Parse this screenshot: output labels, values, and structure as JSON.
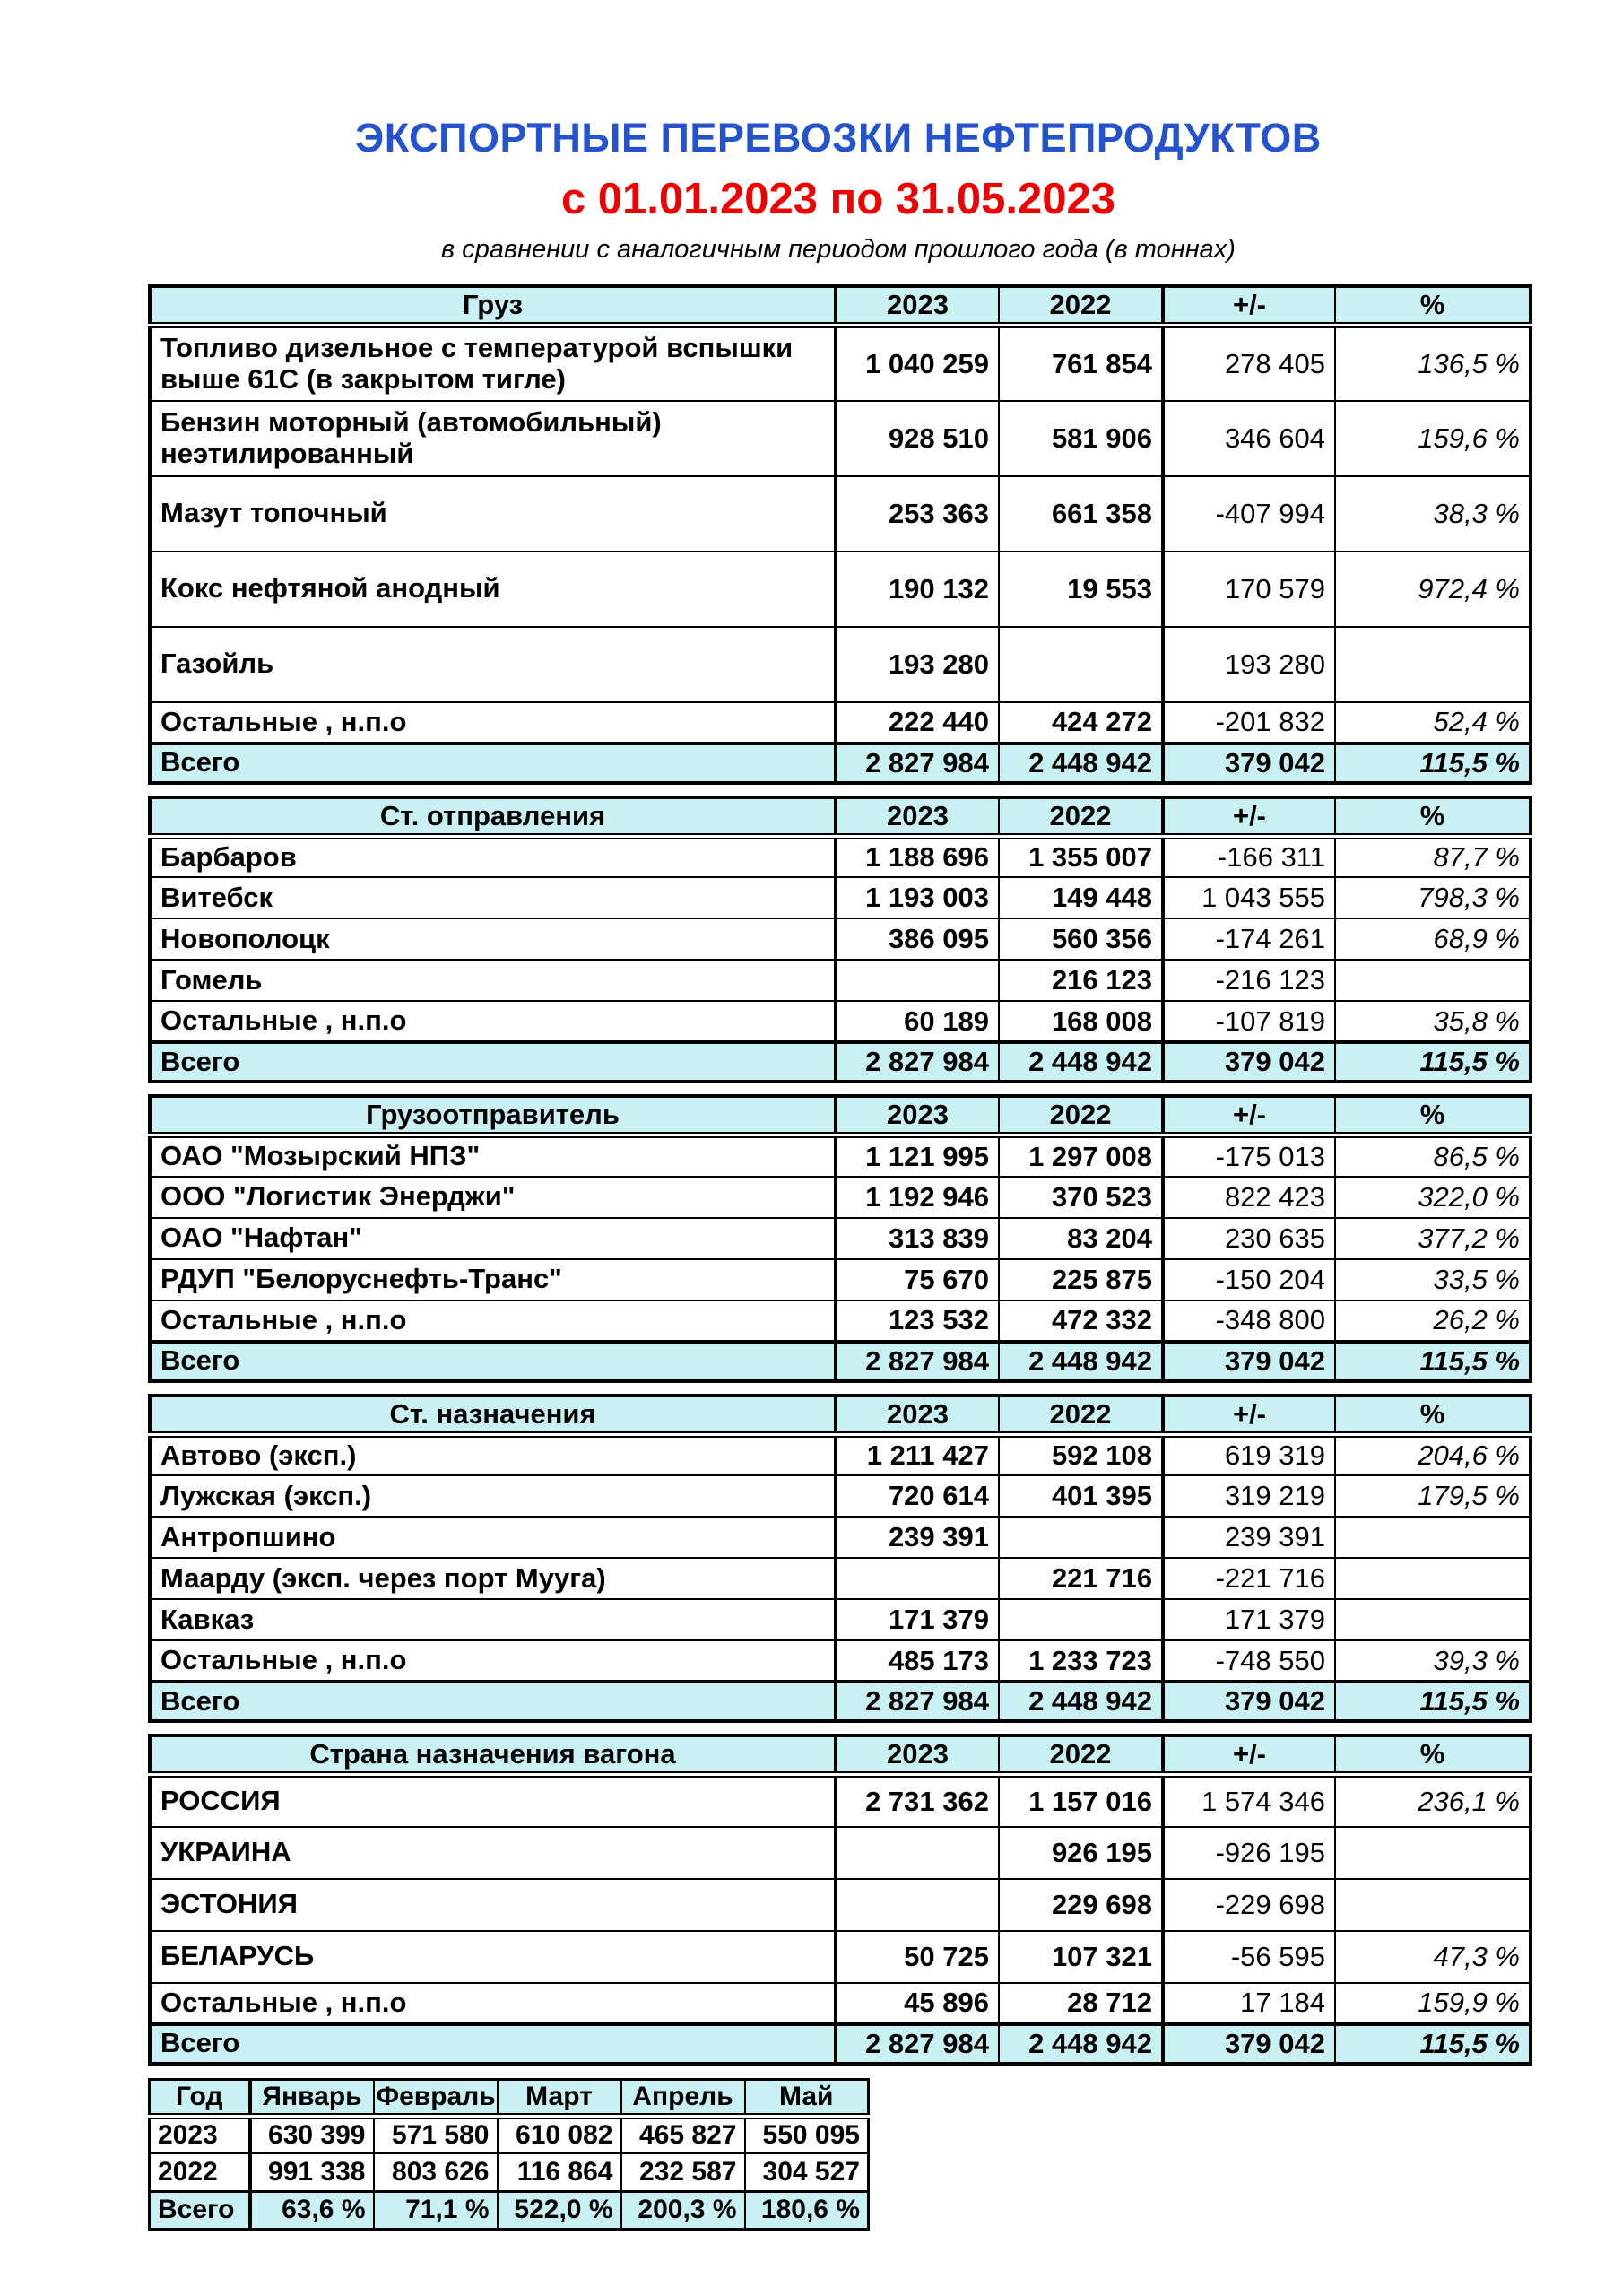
{
  "title": "ЭКСПОРТНЫЕ ПЕРЕВОЗКИ НЕФТЕПРОДУКТОВ",
  "period": "с 01.01.2023 по 31.05.2023",
  "subtitle": "в сравнении с аналогичным периодом прошлого года (в тоннах)",
  "colors": {
    "title_blue": "#2453cc",
    "period_red": "#f00000",
    "header_bg": "#c9f0f2"
  },
  "column_headers": [
    "2023",
    "2022",
    "+/-",
    "%"
  ],
  "tables": [
    {
      "label": "Груз",
      "rows": [
        {
          "name": "Топливо дизельное с температурой вспышки выше 61С (в закрытом тигле)",
          "v2023": "1 040 259",
          "v2022": "761 854",
          "delta": "278 405",
          "pct": "136,5 %"
        },
        {
          "name": "Бензин моторный (автомобильный) неэтилированный",
          "v2023": "928 510",
          "v2022": "581 906",
          "delta": "346 604",
          "pct": "159,6 %"
        },
        {
          "name": "Мазут топочный",
          "v2023": "253 363",
          "v2022": "661 358",
          "delta": "-407 994",
          "pct": "38,3 %"
        },
        {
          "name": "Кокс нефтяной анодный",
          "v2023": "190 132",
          "v2022": "19 553",
          "delta": "170 579",
          "pct": "972,4 %"
        },
        {
          "name": "Газойль",
          "v2023": "193 280",
          "v2022": "",
          "delta": "193 280",
          "pct": ""
        },
        {
          "name": "Остальные , н.п.о",
          "v2023": "222 440",
          "v2022": "424 272",
          "delta": "-201 832",
          "pct": "52,4 %"
        }
      ],
      "total": {
        "name": "Всего",
        "v2023": "2 827 984",
        "v2022": "2 448 942",
        "delta": "379 042",
        "pct": "115,5 %"
      }
    },
    {
      "label": "Ст. отправления",
      "rows": [
        {
          "name": "Барбаров",
          "v2023": "1 188 696",
          "v2022": "1 355 007",
          "delta": "-166 311",
          "pct": "87,7 %"
        },
        {
          "name": "Витебск",
          "v2023": "1 193 003",
          "v2022": "149 448",
          "delta": "1 043 555",
          "pct": "798,3 %"
        },
        {
          "name": "Новополоцк",
          "v2023": "386 095",
          "v2022": "560 356",
          "delta": "-174 261",
          "pct": "68,9 %"
        },
        {
          "name": "Гомель",
          "v2023": "",
          "v2022": "216 123",
          "delta": "-216 123",
          "pct": ""
        },
        {
          "name": "Остальные , н.п.о",
          "v2023": "60 189",
          "v2022": "168 008",
          "delta": "-107 819",
          "pct": "35,8 %"
        }
      ],
      "total": {
        "name": "Всего",
        "v2023": "2 827 984",
        "v2022": "2 448 942",
        "delta": "379 042",
        "pct": "115,5 %"
      }
    },
    {
      "label": "Грузоотправитель",
      "rows": [
        {
          "name": "ОАО \"Мозырский НПЗ\"",
          "v2023": "1 121 995",
          "v2022": "1 297 008",
          "delta": "-175 013",
          "pct": "86,5 %"
        },
        {
          "name": "ООО \"Логистик Энерджи\"",
          "v2023": "1 192 946",
          "v2022": "370 523",
          "delta": "822 423",
          "pct": "322,0 %"
        },
        {
          "name": "ОАО \"Нафтан\"",
          "v2023": "313 839",
          "v2022": "83 204",
          "delta": "230 635",
          "pct": "377,2 %"
        },
        {
          "name": "РДУП \"Белоруснефть-Транс\"",
          "v2023": "75 670",
          "v2022": "225 875",
          "delta": "-150 204",
          "pct": "33,5 %"
        },
        {
          "name": "Остальные , н.п.о",
          "v2023": "123 532",
          "v2022": "472 332",
          "delta": "-348 800",
          "pct": "26,2 %"
        }
      ],
      "total": {
        "name": "Всего",
        "v2023": "2 827 984",
        "v2022": "2 448 942",
        "delta": "379 042",
        "pct": "115,5 %"
      }
    },
    {
      "label": "Ст. назначения",
      "rows": [
        {
          "name": "Автово (эксп.)",
          "v2023": "1 211 427",
          "v2022": "592 108",
          "delta": "619 319",
          "pct": "204,6 %"
        },
        {
          "name": "Лужская (эксп.)",
          "v2023": "720 614",
          "v2022": "401 395",
          "delta": "319 219",
          "pct": "179,5 %"
        },
        {
          "name": "Антропшино",
          "v2023": "239 391",
          "v2022": "",
          "delta": "239 391",
          "pct": ""
        },
        {
          "name": "Маарду (эксп. через порт Мууга)",
          "v2023": "",
          "v2022": "221 716",
          "delta": "-221 716",
          "pct": ""
        },
        {
          "name": "Кавказ",
          "v2023": "171 379",
          "v2022": "",
          "delta": "171 379",
          "pct": ""
        },
        {
          "name": "Остальные , н.п.о",
          "v2023": "485 173",
          "v2022": "1 233 723",
          "delta": "-748 550",
          "pct": "39,3 %"
        }
      ],
      "total": {
        "name": "Всего",
        "v2023": "2 827 984",
        "v2022": "2 448 942",
        "delta": "379 042",
        "pct": "115,5 %"
      }
    },
    {
      "label": "Страна назначения вагона",
      "rows": [
        {
          "name": "РОССИЯ",
          "v2023": "2 731 362",
          "v2022": "1 157 016",
          "delta": "1 574 346",
          "pct": "236,1 %"
        },
        {
          "name": "УКРАИНА",
          "v2023": "",
          "v2022": "926 195",
          "delta": "-926 195",
          "pct": ""
        },
        {
          "name": "ЭСТОНИЯ",
          "v2023": "",
          "v2022": "229 698",
          "delta": "-229 698",
          "pct": ""
        },
        {
          "name": "БЕЛАРУСЬ",
          "v2023": "50 725",
          "v2022": "107 321",
          "delta": "-56 595",
          "pct": "47,3 %"
        },
        {
          "name": "Остальные , н.п.о",
          "v2023": "45 896",
          "v2022": "28 712",
          "delta": "17 184",
          "pct": "159,9 %"
        }
      ],
      "total": {
        "name": "Всего",
        "v2023": "2 827 984",
        "v2022": "2 448 942",
        "delta": "379 042",
        "pct": "115,5 %"
      }
    }
  ],
  "monthly": {
    "headers": [
      "Год",
      "Январь",
      "Февраль",
      "Март",
      "Апрель",
      "Май"
    ],
    "rows": [
      {
        "label": "2023",
        "values": [
          "630 399",
          "571 580",
          "610 082",
          "465 827",
          "550 095"
        ]
      },
      {
        "label": "2022",
        "values": [
          "991 338",
          "803 626",
          "116 864",
          "232 587",
          "304 527"
        ]
      }
    ],
    "total": {
      "label": "Всего",
      "values": [
        "63,6 %",
        "71,1 %",
        "522,0 %",
        "200,3 %",
        "180,6 %"
      ]
    }
  }
}
